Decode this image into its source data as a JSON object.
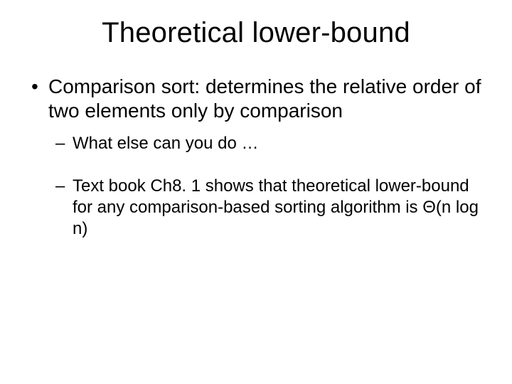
{
  "slide": {
    "title": "Theoretical lower-bound",
    "bullets": [
      {
        "level": 1,
        "text": "Comparison sort: determines the relative order of two elements only by comparison"
      },
      {
        "level": 2,
        "text": "What else can you do …"
      },
      {
        "level": 2,
        "text": "Text book Ch8. 1 shows that theoretical lower-bound for any comparison-based sorting algorithm is Θ(n log n)"
      }
    ],
    "colors": {
      "background": "#ffffff",
      "text": "#000000"
    },
    "typography": {
      "title_fontsize": 40,
      "l1_fontsize": 28,
      "l2_fontsize": 24,
      "font_family": "Arial"
    }
  }
}
